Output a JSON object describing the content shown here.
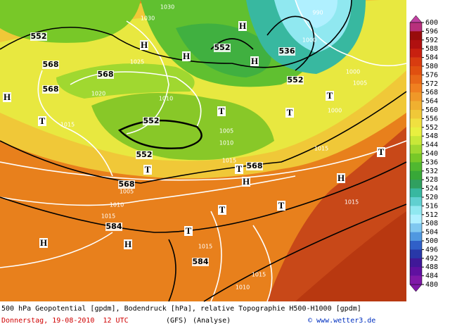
{
  "map": {
    "contour_labels": [
      552,
      568,
      568,
      568,
      552,
      536,
      552,
      552,
      552,
      568,
      568,
      584,
      584,
      1000,
      990,
      1005,
      1000,
      1000,
      1015,
      1005,
      1010,
      1015,
      1005,
      1010,
      1015,
      1015,
      1015,
      1010,
      1020,
      1015,
      1010,
      1030,
      1030,
      1025,
      1015
    ],
    "symbols": [
      "H",
      "H",
      "H",
      "H",
      "H",
      "H",
      "H",
      "H",
      "H",
      "T",
      "T",
      "T",
      "T",
      "T",
      "T",
      "T",
      "T",
      "T",
      "T"
    ]
  },
  "legend": {
    "labels": [
      600,
      596,
      592,
      588,
      584,
      580,
      576,
      572,
      568,
      564,
      560,
      556,
      552,
      548,
      544,
      540,
      536,
      532,
      528,
      524,
      520,
      516,
      512,
      508,
      504,
      500,
      496,
      492,
      488,
      484,
      480
    ],
    "colors": [
      "#b8307c",
      "#980c0c",
      "#b01010",
      "#c82010",
      "#d83c10",
      "#e05010",
      "#e86818",
      "#f08020",
      "#f09828",
      "#f0b030",
      "#f0c838",
      "#f0e040",
      "#e8f040",
      "#c8e838",
      "#a0d830",
      "#78c828",
      "#50b830",
      "#38a838",
      "#30a060",
      "#38b8a0",
      "#60d0d0",
      "#90e8f0",
      "#b0f0ff",
      "#80c8f0",
      "#5098e0",
      "#3060c8",
      "#2838a8",
      "#401898",
      "#6010a0",
      "#8018a8"
    ]
  },
  "caption": {
    "line1": "500 hPa Geopotential [gpdm], Bodendruck [hPa], relative Topographie H500-H1000 [gpdm]",
    "date": "Donnerstag, 19-08-2010  12 UTC",
    "model": "(GFS)",
    "run": "(Analyse)",
    "credit": "© www.wetter3.de"
  }
}
